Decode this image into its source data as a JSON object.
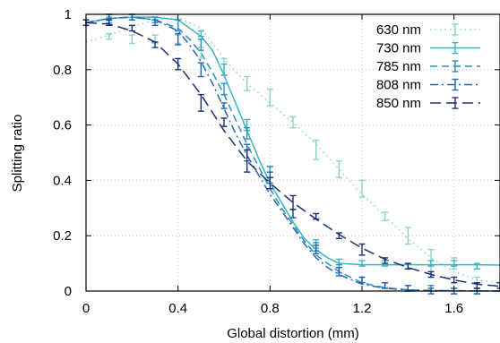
{
  "chart_data": {
    "type": "line",
    "xlabel": "Global distortion (mm)",
    "ylabel": "Splitting ratio",
    "xlim": [
      0,
      1.8
    ],
    "ylim": [
      0,
      1
    ],
    "xticks": [
      "0",
      "0.4",
      "0.8",
      "1.2",
      "1.6"
    ],
    "yticks": [
      "0",
      "0.2",
      "0.4",
      "0.6",
      "0.8",
      "1"
    ],
    "grid": true,
    "legend_position": "top-right",
    "series": [
      {
        "name": "630 nm",
        "color": "#8fd3c4",
        "dash": "dotted",
        "fit": [
          [
            0,
            0.9
          ],
          [
            0.1,
            0.925
          ],
          [
            0.2,
            0.955
          ],
          [
            0.3,
            0.98
          ],
          [
            0.4,
            0.99
          ],
          [
            0.5,
            0.95
          ],
          [
            0.6,
            0.84
          ],
          [
            0.7,
            0.75
          ],
          [
            0.8,
            0.68
          ],
          [
            0.9,
            0.61
          ],
          [
            1.0,
            0.53
          ],
          [
            1.1,
            0.44
          ],
          [
            1.2,
            0.35
          ],
          [
            1.3,
            0.27
          ],
          [
            1.4,
            0.19
          ],
          [
            1.5,
            0.12
          ],
          [
            1.6,
            0.07
          ],
          [
            1.7,
            0.04
          ],
          [
            1.8,
            0.03
          ]
        ],
        "points": [
          {
            "x": 0.0,
            "y": 0.97,
            "err": 0.01
          },
          {
            "x": 0.1,
            "y": 0.92,
            "err": 0.01
          },
          {
            "x": 0.2,
            "y": 0.91,
            "err": 0.015
          },
          {
            "x": 0.3,
            "y": 0.91,
            "err": 0.015
          },
          {
            "x": 0.4,
            "y": 0.91,
            "err": 0.015
          },
          {
            "x": 0.5,
            "y": 0.86,
            "err": 0.02
          },
          {
            "x": 0.6,
            "y": 0.81,
            "err": 0.03
          },
          {
            "x": 0.7,
            "y": 0.75,
            "err": 0.025
          },
          {
            "x": 0.8,
            "y": 0.7,
            "err": 0.03
          },
          {
            "x": 0.9,
            "y": 0.61,
            "err": 0.02
          },
          {
            "x": 1.0,
            "y": 0.51,
            "err": 0.035
          },
          {
            "x": 1.1,
            "y": 0.44,
            "err": 0.03
          },
          {
            "x": 1.2,
            "y": 0.37,
            "err": 0.03
          },
          {
            "x": 1.3,
            "y": 0.27,
            "err": 0.015
          },
          {
            "x": 1.4,
            "y": 0.2,
            "err": 0.03
          },
          {
            "x": 1.5,
            "y": 0.1,
            "err": 0.05
          },
          {
            "x": 1.6,
            "y": 0.1,
            "err": 0.02
          },
          {
            "x": 1.7,
            "y": 0.02,
            "err": 0.03
          }
        ]
      },
      {
        "name": "730 nm",
        "color": "#3ab5c0",
        "dash": "solid",
        "fit": [
          [
            0,
            0.97
          ],
          [
            0.1,
            0.985
          ],
          [
            0.2,
            0.99
          ],
          [
            0.3,
            0.99
          ],
          [
            0.4,
            0.98
          ],
          [
            0.45,
            0.95
          ],
          [
            0.5,
            0.92
          ],
          [
            0.55,
            0.87
          ],
          [
            0.6,
            0.78
          ],
          [
            0.65,
            0.68
          ],
          [
            0.7,
            0.58
          ],
          [
            0.75,
            0.48
          ],
          [
            0.8,
            0.39
          ],
          [
            0.85,
            0.32
          ],
          [
            0.9,
            0.25
          ],
          [
            0.95,
            0.19
          ],
          [
            1.0,
            0.15
          ],
          [
            1.05,
            0.12
          ],
          [
            1.1,
            0.1
          ],
          [
            1.2,
            0.095
          ],
          [
            1.3,
            0.095
          ],
          [
            1.4,
            0.095
          ],
          [
            1.5,
            0.095
          ],
          [
            1.6,
            0.095
          ],
          [
            1.7,
            0.095
          ],
          [
            1.8,
            0.094
          ]
        ],
        "points": [
          {
            "x": 0.0,
            "y": 0.97,
            "err": 0.01
          },
          {
            "x": 0.1,
            "y": 0.98,
            "err": 0.01
          },
          {
            "x": 0.2,
            "y": 0.99,
            "err": 0.01
          },
          {
            "x": 0.3,
            "y": 0.98,
            "err": 0.01
          },
          {
            "x": 0.4,
            "y": 0.96,
            "err": 0.02
          },
          {
            "x": 0.5,
            "y": 0.93,
            "err": 0.01
          },
          {
            "x": 0.6,
            "y": 0.8,
            "err": 0.02
          },
          {
            "x": 0.7,
            "y": 0.6,
            "err": 0.02
          },
          {
            "x": 0.8,
            "y": 0.43,
            "err": 0.02
          },
          {
            "x": 0.9,
            "y": 0.28,
            "err": 0.015
          },
          {
            "x": 1.0,
            "y": 0.17,
            "err": 0.015
          },
          {
            "x": 1.1,
            "y": 0.1,
            "err": 0.015
          },
          {
            "x": 1.2,
            "y": 0.1,
            "err": 0.01
          },
          {
            "x": 1.3,
            "y": 0.1,
            "err": 0.01
          },
          {
            "x": 1.4,
            "y": 0.09,
            "err": 0.01
          },
          {
            "x": 1.5,
            "y": 0.1,
            "err": 0.01
          },
          {
            "x": 1.6,
            "y": 0.1,
            "err": 0.01
          },
          {
            "x": 1.7,
            "y": 0.09,
            "err": 0.01
          }
        ]
      },
      {
        "name": "785 nm",
        "color": "#2a8fc7",
        "dash": "dashed",
        "fit": [
          [
            0,
            0.97
          ],
          [
            0.1,
            0.985
          ],
          [
            0.2,
            0.99
          ],
          [
            0.3,
            0.98
          ],
          [
            0.4,
            0.95
          ],
          [
            0.45,
            0.91
          ],
          [
            0.5,
            0.86
          ],
          [
            0.55,
            0.79
          ],
          [
            0.6,
            0.71
          ],
          [
            0.65,
            0.62
          ],
          [
            0.7,
            0.53
          ],
          [
            0.75,
            0.45
          ],
          [
            0.8,
            0.37
          ],
          [
            0.85,
            0.3
          ],
          [
            0.9,
            0.24
          ],
          [
            0.95,
            0.18
          ],
          [
            1.0,
            0.13
          ],
          [
            1.05,
            0.1
          ],
          [
            1.1,
            0.07
          ],
          [
            1.2,
            0.03
          ],
          [
            1.3,
            0.012
          ],
          [
            1.4,
            0.005
          ],
          [
            1.5,
            0.002
          ],
          [
            1.6,
            0.001
          ],
          [
            1.8,
            0.0
          ]
        ],
        "points": [
          {
            "x": 0.0,
            "y": 0.97,
            "err": 0.01
          },
          {
            "x": 0.1,
            "y": 0.99,
            "err": 0.01
          },
          {
            "x": 0.2,
            "y": 0.99,
            "err": 0.01
          },
          {
            "x": 0.3,
            "y": 0.98,
            "err": 0.01
          },
          {
            "x": 0.4,
            "y": 0.96,
            "err": 0.02
          },
          {
            "x": 0.5,
            "y": 0.89,
            "err": 0.02
          },
          {
            "x": 0.6,
            "y": 0.73,
            "err": 0.02
          },
          {
            "x": 0.7,
            "y": 0.57,
            "err": 0.02
          },
          {
            "x": 0.8,
            "y": 0.43,
            "err": 0.02
          },
          {
            "x": 0.9,
            "y": 0.28,
            "err": 0.015
          },
          {
            "x": 1.0,
            "y": 0.16,
            "err": 0.015
          },
          {
            "x": 1.1,
            "y": 0.08,
            "err": 0.015
          },
          {
            "x": 1.2,
            "y": 0.04,
            "err": 0.01
          },
          {
            "x": 1.3,
            "y": 0.02,
            "err": 0.01
          },
          {
            "x": 1.4,
            "y": 0.01,
            "err": 0.01
          },
          {
            "x": 1.5,
            "y": 0.01,
            "err": 0.01
          },
          {
            "x": 1.6,
            "y": 0.0,
            "err": 0.01
          },
          {
            "x": 1.7,
            "y": 0.0,
            "err": 0.01
          }
        ]
      },
      {
        "name": "808 nm",
        "color": "#2565ad",
        "dash": "dashdot",
        "fit": [
          [
            0,
            0.97
          ],
          [
            0.1,
            0.985
          ],
          [
            0.2,
            0.99
          ],
          [
            0.3,
            0.98
          ],
          [
            0.4,
            0.94
          ],
          [
            0.45,
            0.89
          ],
          [
            0.5,
            0.83
          ],
          [
            0.55,
            0.75
          ],
          [
            0.6,
            0.66
          ],
          [
            0.65,
            0.57
          ],
          [
            0.7,
            0.49
          ],
          [
            0.75,
            0.42
          ],
          [
            0.8,
            0.35
          ],
          [
            0.85,
            0.29
          ],
          [
            0.9,
            0.23
          ],
          [
            0.95,
            0.17
          ],
          [
            1.0,
            0.12
          ],
          [
            1.05,
            0.085
          ],
          [
            1.1,
            0.06
          ],
          [
            1.2,
            0.025
          ],
          [
            1.3,
            0.01
          ],
          [
            1.4,
            0.004
          ],
          [
            1.5,
            0.002
          ],
          [
            1.8,
            0.0
          ]
        ],
        "points": [
          {
            "x": 0.0,
            "y": 0.97,
            "err": 0.01
          },
          {
            "x": 0.1,
            "y": 0.99,
            "err": 0.01
          },
          {
            "x": 0.2,
            "y": 0.99,
            "err": 0.01
          },
          {
            "x": 0.3,
            "y": 0.97,
            "err": 0.01
          },
          {
            "x": 0.4,
            "y": 0.91,
            "err": 0.02
          },
          {
            "x": 0.5,
            "y": 0.8,
            "err": 0.025
          },
          {
            "x": 0.6,
            "y": 0.67,
            "err": 0.01
          },
          {
            "x": 0.7,
            "y": 0.5,
            "err": 0.03
          },
          {
            "x": 0.8,
            "y": 0.41,
            "err": 0.02
          },
          {
            "x": 0.9,
            "y": 0.28,
            "err": 0.015
          },
          {
            "x": 1.0,
            "y": 0.15,
            "err": 0.015
          },
          {
            "x": 1.1,
            "y": 0.07,
            "err": 0.015
          },
          {
            "x": 1.2,
            "y": 0.04,
            "err": 0.01
          },
          {
            "x": 1.3,
            "y": 0.02,
            "err": 0.01
          },
          {
            "x": 1.4,
            "y": 0.01,
            "err": 0.01
          },
          {
            "x": 1.5,
            "y": 0.0,
            "err": 0.01
          },
          {
            "x": 1.6,
            "y": 0.0,
            "err": 0.01
          },
          {
            "x": 1.7,
            "y": 0.0,
            "err": 0.01
          }
        ]
      },
      {
        "name": "850 nm",
        "color": "#1b2f77",
        "dash": "longdash",
        "fit": [
          [
            0,
            0.97
          ],
          [
            0.1,
            0.965
          ],
          [
            0.2,
            0.94
          ],
          [
            0.3,
            0.9
          ],
          [
            0.4,
            0.82
          ],
          [
            0.5,
            0.71
          ],
          [
            0.6,
            0.58
          ],
          [
            0.7,
            0.47
          ],
          [
            0.8,
            0.39
          ],
          [
            0.9,
            0.32
          ],
          [
            1.0,
            0.26
          ],
          [
            1.1,
            0.205
          ],
          [
            1.2,
            0.155
          ],
          [
            1.3,
            0.115
          ],
          [
            1.4,
            0.085
          ],
          [
            1.5,
            0.06
          ],
          [
            1.6,
            0.04
          ],
          [
            1.7,
            0.025
          ],
          [
            1.8,
            0.017
          ]
        ],
        "points": [
          {
            "x": 0.0,
            "y": 0.97,
            "err": 0.01
          },
          {
            "x": 0.1,
            "y": 0.97,
            "err": 0.01
          },
          {
            "x": 0.2,
            "y": 0.95,
            "err": 0.01
          },
          {
            "x": 0.3,
            "y": 0.89,
            "err": 0.01
          },
          {
            "x": 0.4,
            "y": 0.82,
            "err": 0.02
          },
          {
            "x": 0.5,
            "y": 0.68,
            "err": 0.03
          },
          {
            "x": 0.6,
            "y": 0.61,
            "err": 0.015
          },
          {
            "x": 0.7,
            "y": 0.47,
            "err": 0.04
          },
          {
            "x": 0.8,
            "y": 0.39,
            "err": 0.02
          },
          {
            "x": 0.9,
            "y": 0.32,
            "err": 0.025
          },
          {
            "x": 1.0,
            "y": 0.27,
            "err": 0.01
          },
          {
            "x": 1.1,
            "y": 0.2,
            "err": 0.01
          },
          {
            "x": 1.2,
            "y": 0.15,
            "err": 0.02
          },
          {
            "x": 1.3,
            "y": 0.11,
            "err": 0.01
          },
          {
            "x": 1.4,
            "y": 0.09,
            "err": 0.01
          },
          {
            "x": 1.5,
            "y": 0.06,
            "err": 0.01
          },
          {
            "x": 1.6,
            "y": 0.04,
            "err": 0.01
          },
          {
            "x": 1.7,
            "y": 0.02,
            "err": 0.01
          },
          {
            "x": 1.8,
            "y": 0.02,
            "err": 0.01
          }
        ]
      }
    ]
  }
}
